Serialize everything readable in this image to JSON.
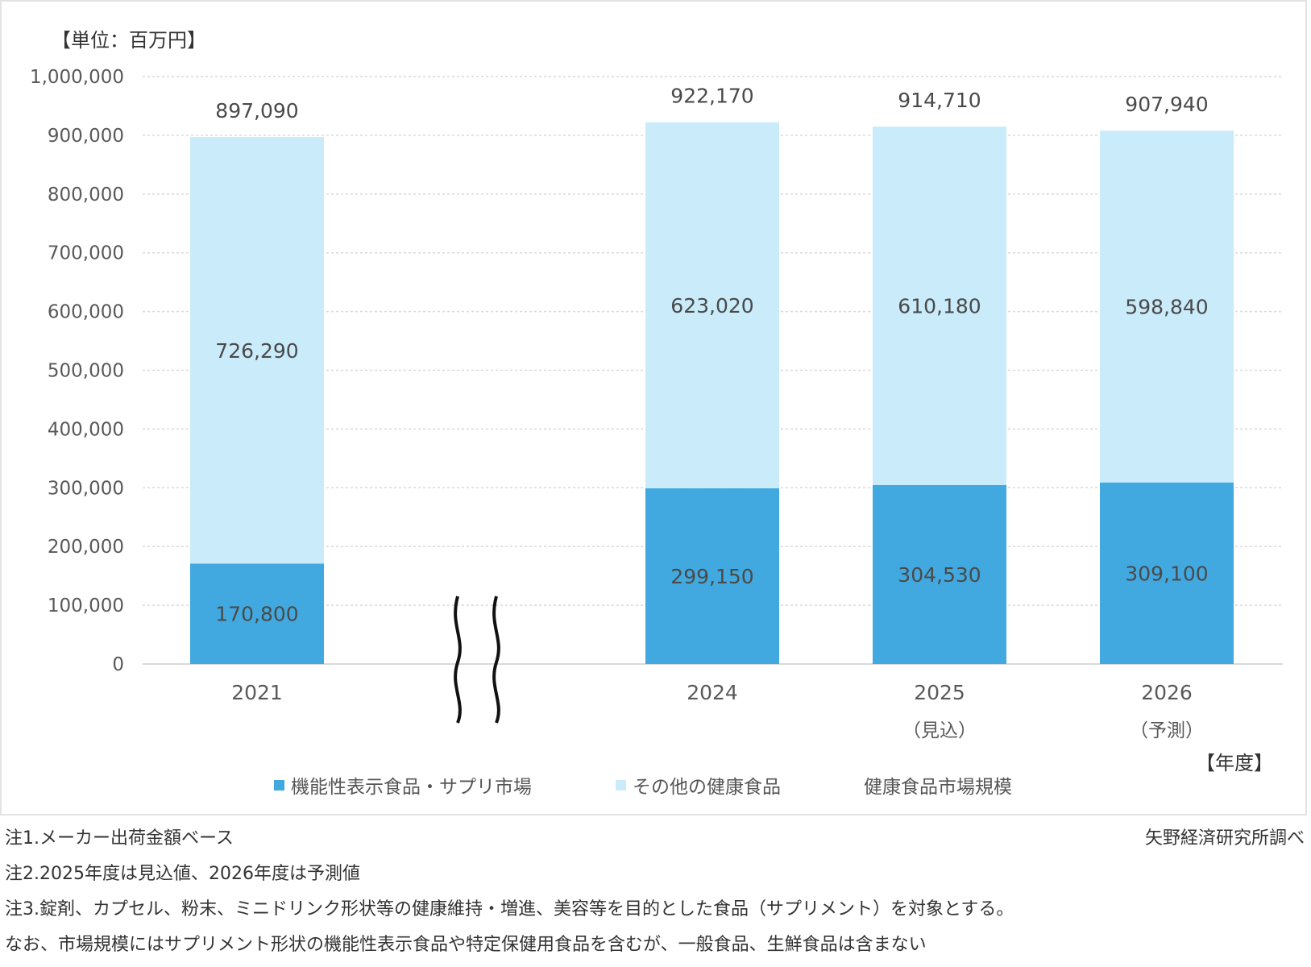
{
  "unit_label": "【単位：百万円】",
  "year_unit_label": "【年度】",
  "chart_data": {
    "type": "bar",
    "stacked": true,
    "categories": [
      "2021",
      "2024",
      "2025",
      "2026"
    ],
    "category_sublabels": [
      "",
      "",
      "（見込）",
      "（予測）"
    ],
    "axis_break_between": [
      "2021",
      "2024"
    ],
    "series": [
      {
        "name": "機能性表示食品・サプリ市場",
        "color": "#41a9df",
        "values": [
          170800,
          299150,
          304530,
          309100
        ]
      },
      {
        "name": "その他の健康食品",
        "color": "#c9ebfa",
        "values": [
          726290,
          623020,
          610180,
          598840
        ]
      }
    ],
    "totals": {
      "name": "健康食品市場規模",
      "values": [
        897090,
        922170,
        914710,
        907940
      ]
    },
    "data_labels": {
      "bottom": [
        "170,800",
        "299,150",
        "304,530",
        "309,100"
      ],
      "top": [
        "726,290",
        "623,020",
        "610,180",
        "598,840"
      ],
      "totals": [
        "897,090",
        "922,170",
        "914,710",
        "907,940"
      ]
    },
    "ylim": [
      0,
      1000000
    ],
    "yticks": [
      0,
      100000,
      200000,
      300000,
      400000,
      500000,
      600000,
      700000,
      800000,
      900000,
      1000000
    ],
    "ytick_labels": [
      "0",
      "100,000",
      "200,000",
      "300,000",
      "400,000",
      "500,000",
      "600,000",
      "700,000",
      "800,000",
      "900,000",
      "1,000,000"
    ],
    "grid": true,
    "legend_position": "bottom"
  },
  "notes": {
    "note1": "注1.メーカー出荷金額ベース",
    "note2": "注2.2025年度は見込値、2026年度は予測値",
    "note3": "注3.錠剤、カプセル、粉末、ミニドリンク形状等の健康維持・増進、美容等を目的とした食品（サプリメント）を対象とする。",
    "note4": "なお、市場規模にはサプリメント形状の機能性表示食品や特定保健用食品を含むが、一般食品、生鮮食品は含まない",
    "source": "矢野経済研究所調べ"
  }
}
